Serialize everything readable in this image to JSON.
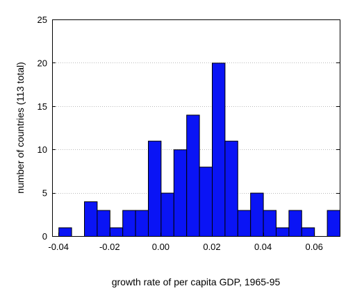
{
  "chart_data": {
    "type": "bar",
    "title": "",
    "xlabel": "growth rate of per capita GDP, 1965-95",
    "ylabel": "number of countries (113 total)",
    "bin_width": 0.005,
    "bin_starts": [
      -0.04,
      -0.035,
      -0.03,
      -0.025,
      -0.02,
      -0.015,
      -0.01,
      -0.005,
      0.0,
      0.005,
      0.01,
      0.015,
      0.02,
      0.025,
      0.03,
      0.035,
      0.04,
      0.045,
      0.05,
      0.055,
      0.06,
      0.065
    ],
    "values": [
      1,
      0,
      4,
      3,
      1,
      3,
      3,
      11,
      5,
      10,
      14,
      8,
      20,
      11,
      3,
      5,
      3,
      1,
      3,
      1,
      0,
      3
    ],
    "xlim": [
      -0.0425,
      0.07
    ],
    "ylim": [
      0,
      25
    ],
    "x_ticks": [
      -0.04,
      -0.02,
      0.0,
      0.02,
      0.04,
      0.06
    ],
    "x_tick_labels": [
      "-0.04",
      "-0.02",
      "0.00",
      "0.02",
      "0.04",
      "0.06"
    ],
    "y_ticks": [
      0,
      5,
      10,
      15,
      20,
      25
    ],
    "y_tick_labels": [
      "0",
      "5",
      "10",
      "15",
      "20",
      "25"
    ],
    "grid": "horizontal dotted",
    "bar_color": "#0a14f5",
    "bar_edge_color": "#000000"
  }
}
